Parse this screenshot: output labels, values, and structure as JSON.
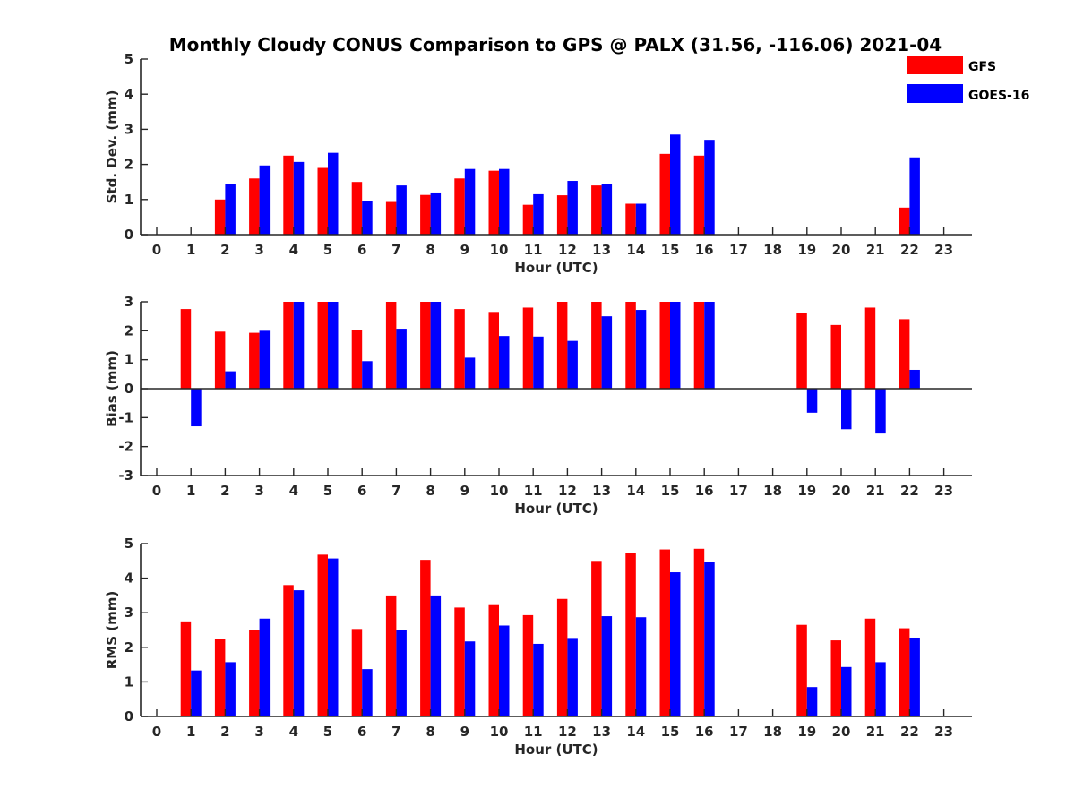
{
  "title": "Monthly Cloudy CONUS Comparison to GPS @ PALX (31.56, -116.06) 2021-04",
  "colors": {
    "GFS": "#ff0000",
    "GOES-16": "#0000ff",
    "axis": "#262626"
  },
  "legend": {
    "placement": "top-right",
    "entries": [
      "GFS",
      "GOES-16"
    ]
  },
  "chart_data": [
    {
      "type": "bar",
      "ylabel": "Std. Dev. (mm)",
      "xlabel": "Hour (UTC)",
      "ylim": [
        0,
        5
      ],
      "yticks": [
        0,
        1,
        2,
        3,
        4,
        5
      ],
      "categories": [
        0,
        1,
        2,
        3,
        4,
        5,
        6,
        7,
        8,
        9,
        10,
        11,
        12,
        13,
        14,
        15,
        16,
        17,
        18,
        19,
        20,
        21,
        22,
        23
      ],
      "series": [
        {
          "name": "GFS",
          "values": [
            null,
            null,
            1.0,
            1.6,
            2.25,
            1.9,
            1.5,
            0.93,
            1.13,
            1.6,
            1.82,
            0.85,
            1.12,
            1.4,
            0.88,
            2.3,
            2.25,
            null,
            null,
            null,
            null,
            null,
            0.77,
            null
          ]
        },
        {
          "name": "GOES-16",
          "values": [
            null,
            null,
            1.43,
            1.97,
            2.07,
            2.33,
            0.95,
            1.4,
            1.2,
            1.87,
            1.87,
            1.15,
            1.53,
            1.45,
            0.88,
            2.85,
            2.7,
            null,
            null,
            null,
            null,
            null,
            2.2,
            null
          ]
        }
      ]
    },
    {
      "type": "bar",
      "ylabel": "Bias (mm)",
      "xlabel": "Hour (UTC)",
      "ylim": [
        -3,
        3
      ],
      "yticks": [
        -3,
        -2,
        -1,
        0,
        1,
        2,
        3
      ],
      "zero_line": true,
      "categories": [
        0,
        1,
        2,
        3,
        4,
        5,
        6,
        7,
        8,
        9,
        10,
        11,
        12,
        13,
        14,
        15,
        16,
        17,
        18,
        19,
        20,
        21,
        22,
        23
      ],
      "series": [
        {
          "name": "GFS",
          "values": [
            null,
            2.75,
            1.97,
            1.93,
            3,
            3,
            2.03,
            3,
            3,
            2.75,
            2.65,
            2.8,
            3,
            3,
            3,
            3,
            3,
            null,
            null,
            2.62,
            2.2,
            2.8,
            2.4,
            null
          ]
        },
        {
          "name": "GOES-16",
          "values": [
            null,
            -1.3,
            0.6,
            2.0,
            3,
            3,
            0.95,
            2.07,
            3,
            1.07,
            1.82,
            1.8,
            1.65,
            2.5,
            2.72,
            3,
            3,
            null,
            null,
            -0.83,
            -1.4,
            -1.55,
            0.65,
            null
          ]
        }
      ]
    },
    {
      "type": "bar",
      "ylabel": "RMS (mm)",
      "xlabel": "Hour (UTC)",
      "ylim": [
        0,
        5
      ],
      "yticks": [
        0,
        1,
        2,
        3,
        4,
        5
      ],
      "categories": [
        0,
        1,
        2,
        3,
        4,
        5,
        6,
        7,
        8,
        9,
        10,
        11,
        12,
        13,
        14,
        15,
        16,
        17,
        18,
        19,
        20,
        21,
        22,
        23
      ],
      "series": [
        {
          "name": "GFS",
          "values": [
            null,
            2.75,
            2.23,
            2.5,
            3.8,
            4.68,
            2.53,
            3.5,
            4.53,
            3.15,
            3.22,
            2.93,
            3.4,
            4.5,
            4.72,
            4.83,
            4.85,
            null,
            null,
            2.65,
            2.2,
            2.83,
            2.55,
            null
          ]
        },
        {
          "name": "GOES-16",
          "values": [
            null,
            1.33,
            1.57,
            2.83,
            3.65,
            4.57,
            1.37,
            2.5,
            3.5,
            2.17,
            2.63,
            2.1,
            2.27,
            2.9,
            2.87,
            4.17,
            4.48,
            null,
            null,
            0.85,
            1.43,
            1.57,
            2.28,
            null
          ]
        }
      ]
    }
  ]
}
